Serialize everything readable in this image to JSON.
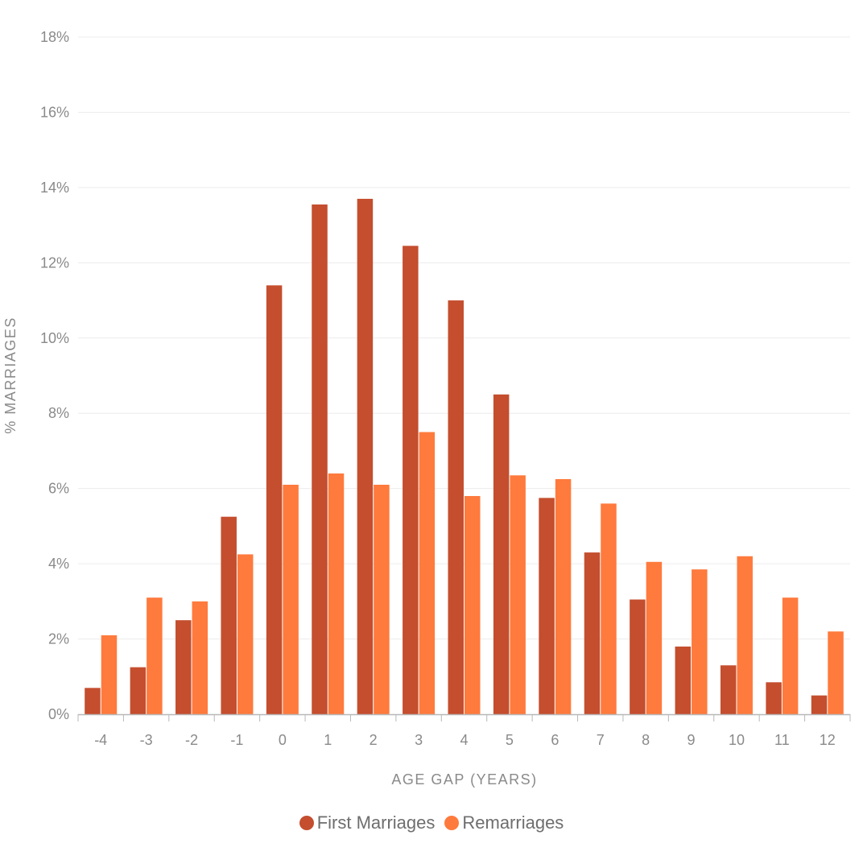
{
  "chart_data": {
    "type": "bar",
    "xlabel": "AGE GAP (YEARS)",
    "ylabel": "% MARRIAGES",
    "ylim": [
      0,
      18
    ],
    "yticks": [
      "0%",
      "2%",
      "4%",
      "6%",
      "8%",
      "10%",
      "12%",
      "14%",
      "16%",
      "18%"
    ],
    "categories": [
      "-4",
      "-3",
      "-2",
      "-1",
      "0",
      "1",
      "2",
      "3",
      "4",
      "5",
      "6",
      "7",
      "8",
      "9",
      "10",
      "11",
      "12"
    ],
    "series": [
      {
        "name": "First Marriages",
        "color": "#c44e2e",
        "values": [
          0.7,
          1.25,
          2.5,
          5.25,
          11.4,
          13.55,
          13.7,
          12.45,
          11.0,
          8.5,
          5.75,
          4.3,
          3.05,
          1.8,
          1.3,
          0.85,
          0.5
        ]
      },
      {
        "name": "Remarriages",
        "color": "#ff7a3d",
        "values": [
          2.1,
          3.1,
          3.0,
          4.25,
          6.1,
          6.4,
          6.1,
          7.5,
          5.8,
          6.35,
          6.25,
          5.6,
          4.05,
          3.85,
          4.2,
          3.1,
          2.2
        ]
      }
    ],
    "grid": true,
    "legend_position": "bottom-center"
  }
}
